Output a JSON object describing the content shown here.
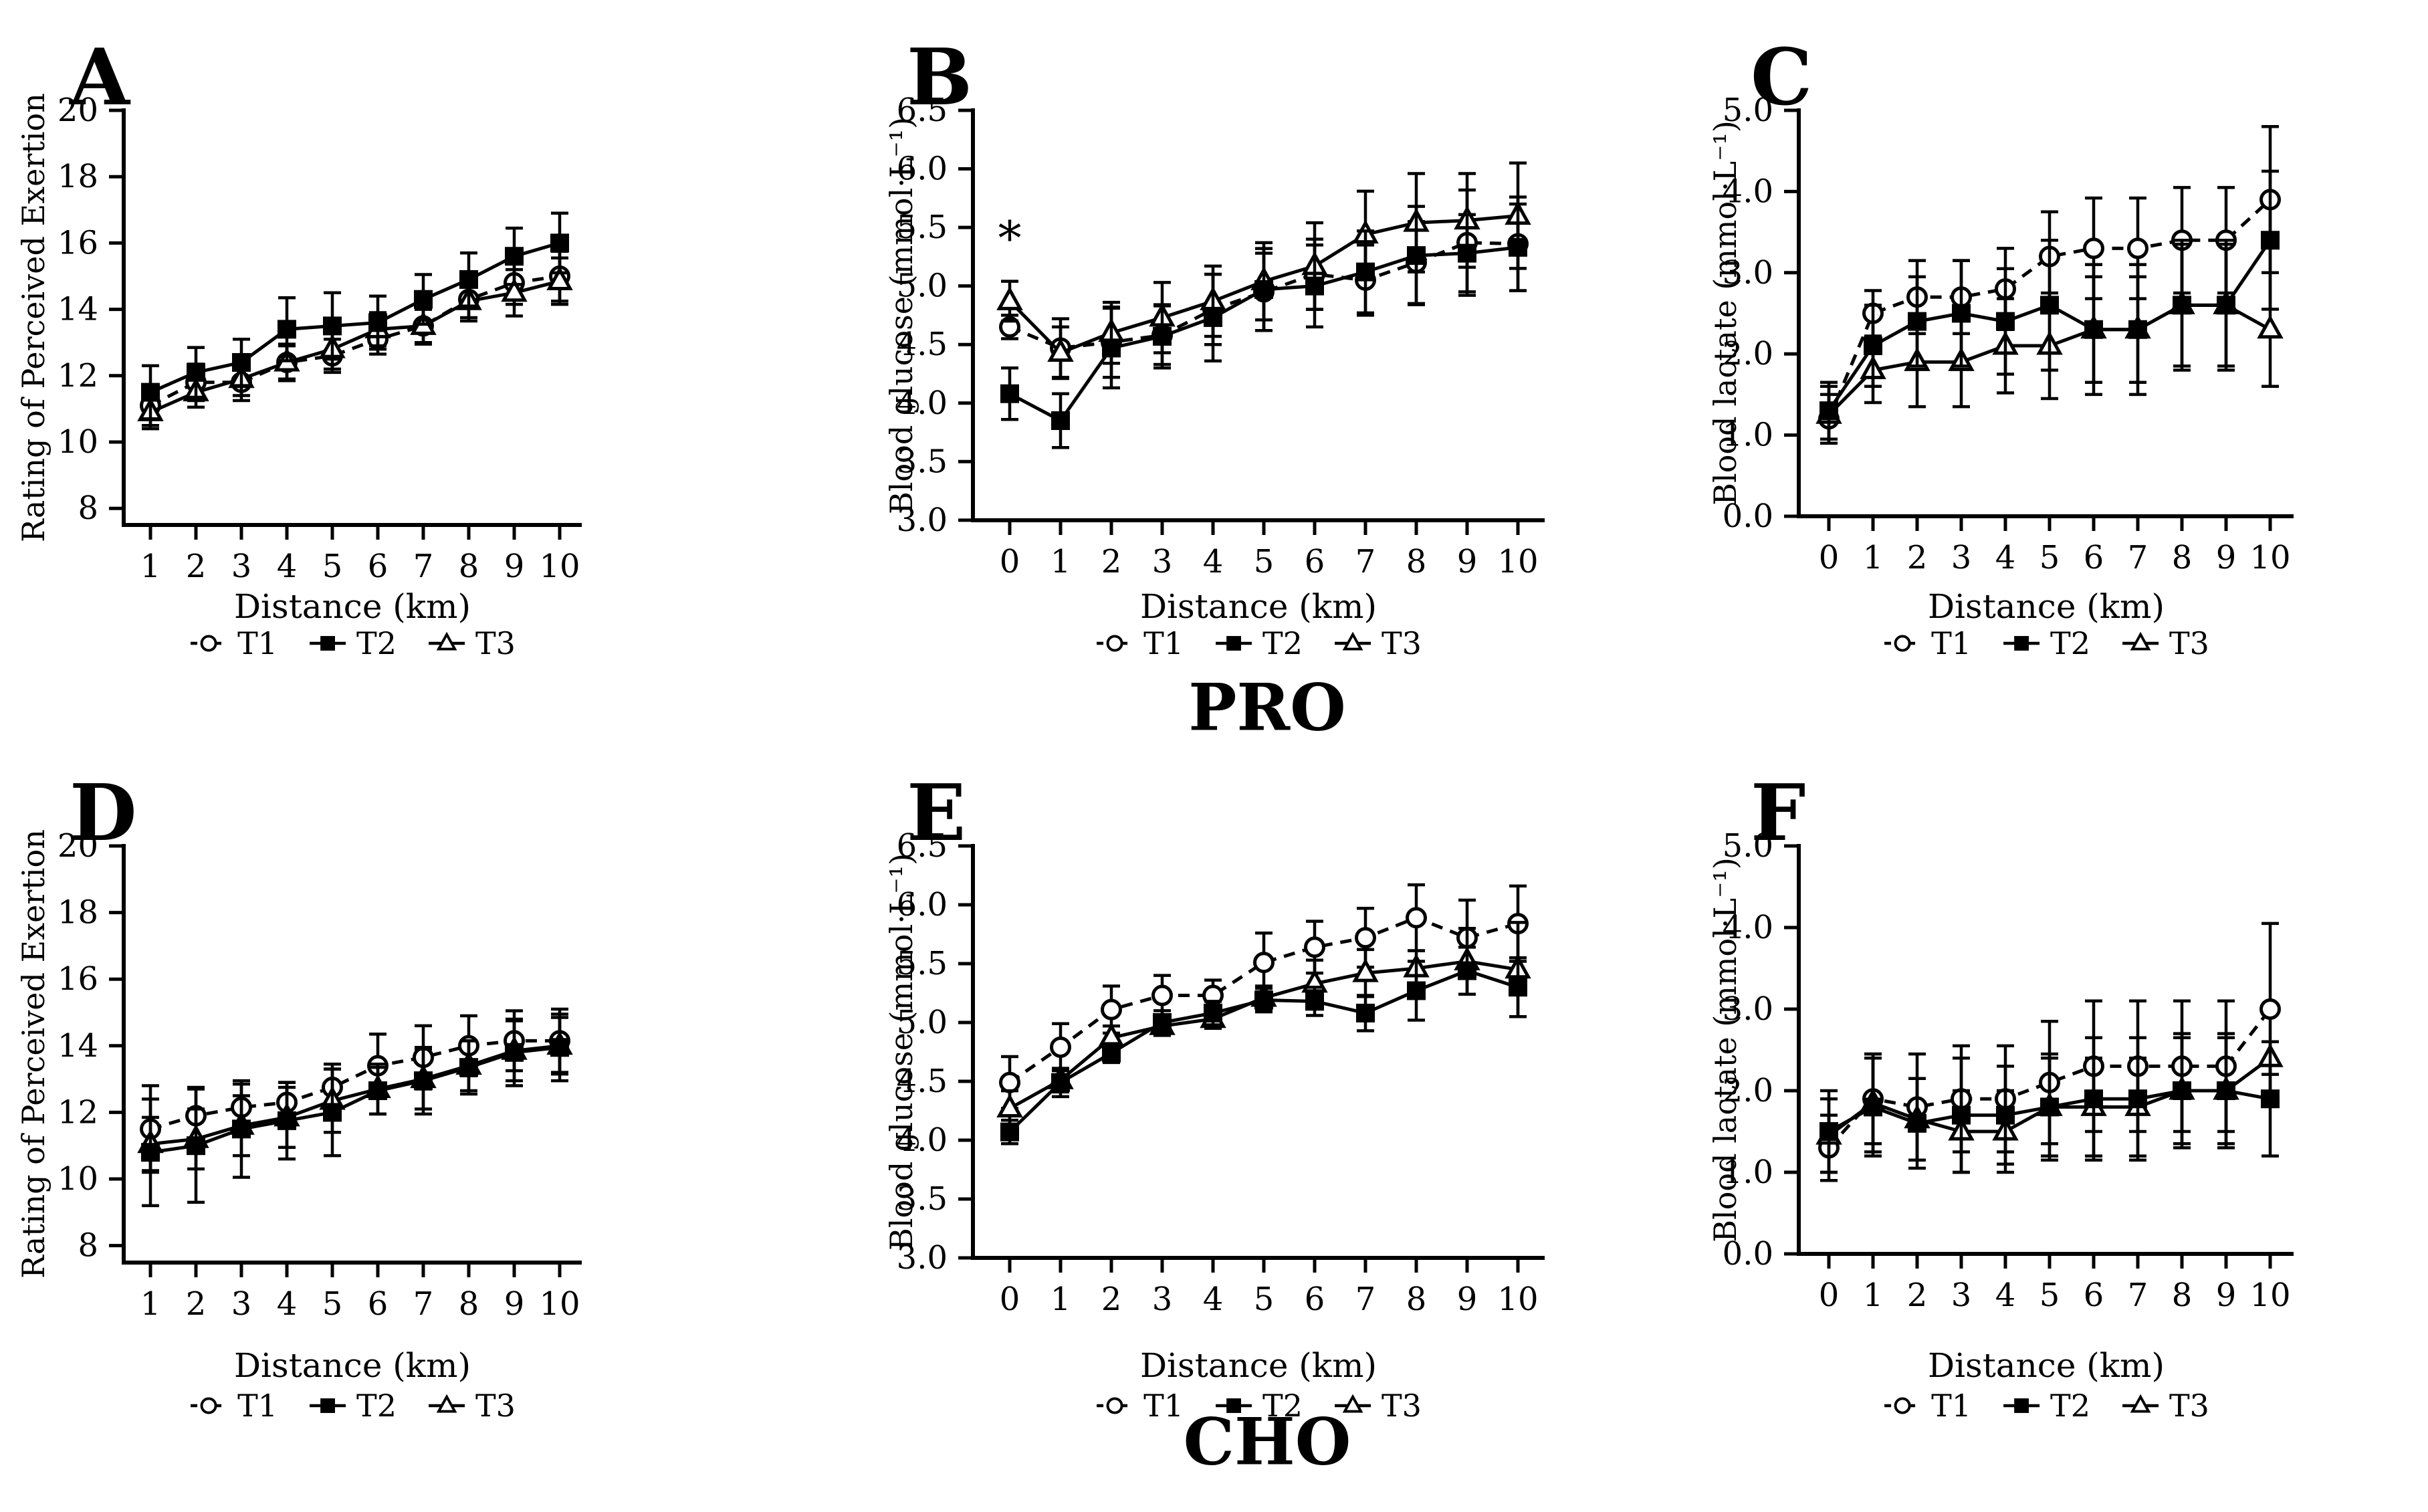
{
  "figure": {
    "background": "#ffffff",
    "ink_color": "#000000",
    "group_titles": {
      "top": "PRO",
      "bottom": "CHO"
    }
  },
  "chart_data": [
    {
      "id": "A",
      "panel_label": "A",
      "type": "line",
      "group": "PRO",
      "xlabel": "Distance (km)",
      "ylabel": "Rating of Perceived Exertion",
      "ylim": [
        7.5,
        20
      ],
      "xlim": [
        0.4,
        10.7
      ],
      "grid": false,
      "legend_position": "bottom",
      "x": [
        1,
        2,
        3,
        4,
        5,
        6,
        7,
        8,
        9,
        10
      ],
      "xticks": {
        "values": [
          1,
          2,
          3,
          4,
          5,
          6,
          7,
          8,
          9,
          10
        ],
        "labels": [
          "1",
          "2",
          "3",
          "4",
          "5",
          "6",
          "7",
          "8",
          "9",
          "10"
        ]
      },
      "yticks": {
        "values": [
          20,
          18,
          16,
          14,
          12,
          10,
          8
        ],
        "labels": [
          "20",
          "18",
          "16",
          "14",
          "12",
          "10",
          "8"
        ]
      },
      "series": [
        {
          "name": "T1",
          "marker": "open-circle",
          "line": "dashed",
          "values": [
            11.1,
            11.8,
            11.8,
            12.4,
            12.6,
            13.1,
            13.5,
            14.3,
            14.8,
            15.0
          ],
          "sd": [
            0.6,
            0.55,
            0.55,
            0.5,
            0.5,
            0.45,
            0.55,
            0.55,
            0.65,
            0.75
          ]
        },
        {
          "name": "T2",
          "marker": "filled-square",
          "line": "solid",
          "values": [
            11.5,
            12.1,
            12.4,
            13.4,
            13.5,
            13.6,
            14.3,
            14.9,
            15.6,
            16.0
          ],
          "sd": [
            0.8,
            0.75,
            0.7,
            0.95,
            1.0,
            0.8,
            0.75,
            0.8,
            0.85,
            0.9
          ]
        },
        {
          "name": "T3",
          "marker": "open-triangle",
          "line": "solid",
          "values": [
            10.9,
            11.5,
            11.9,
            12.4,
            12.8,
            13.4,
            13.5,
            14.25,
            14.5,
            14.85
          ],
          "sd": [
            0.5,
            0.45,
            0.5,
            0.55,
            0.6,
            0.5,
            0.5,
            0.6,
            0.7,
            0.7
          ]
        }
      ]
    },
    {
      "id": "B",
      "panel_label": "B",
      "type": "line",
      "group": "PRO",
      "xlabel": "Distance (km)",
      "ylabel": "Blood glucose (mmol·L⁻¹)",
      "ylim": [
        3.0,
        6.5
      ],
      "xlim": [
        -0.6,
        10.5
      ],
      "grid": false,
      "legend_position": "bottom",
      "x": [
        0,
        1,
        2,
        3,
        4,
        5,
        6,
        7,
        8,
        9,
        10
      ],
      "xticks": {
        "values": [
          0,
          1,
          2,
          3,
          4,
          5,
          6,
          7,
          8,
          9,
          10
        ],
        "labels": [
          "0",
          "1",
          "2",
          "3",
          "4",
          "5",
          "6",
          "7",
          "8",
          "9",
          "10"
        ]
      },
      "yticks": {
        "values": [
          6.5,
          6.0,
          5.5,
          5.0,
          4.5,
          4.0,
          3.5,
          3.0
        ],
        "labels": [
          "6.5",
          "6.0",
          "5.5",
          "5.0",
          "4.5",
          "4.0",
          "3.5",
          "3.0"
        ]
      },
      "series": [
        {
          "name": "T1",
          "marker": "open-circle",
          "line": "dashed",
          "values": [
            4.65,
            4.47,
            4.52,
            4.58,
            4.8,
            4.95,
            5.1,
            5.05,
            5.2,
            5.37,
            5.36
          ],
          "sd": [
            0.1,
            0.25,
            0.3,
            0.25,
            0.3,
            0.33,
            0.3,
            0.3,
            0.35,
            0.45,
            0.4
          ]
        },
        {
          "name": "T2",
          "marker": "filled-square",
          "line": "solid",
          "values": [
            4.08,
            3.85,
            4.47,
            4.57,
            4.73,
            4.97,
            5.0,
            5.12,
            5.26,
            5.28,
            5.33
          ],
          "sd": [
            0.22,
            0.23,
            0.34,
            0.27,
            0.37,
            0.35,
            0.35,
            0.35,
            0.42,
            0.33,
            0.37
          ]
        },
        {
          "name": "T3",
          "marker": "open-triangle",
          "line": "solid",
          "values": [
            4.87,
            4.43,
            4.6,
            4.73,
            4.87,
            5.04,
            5.17,
            5.44,
            5.54,
            5.56,
            5.6
          ],
          "sd": [
            0.17,
            0.22,
            0.26,
            0.3,
            0.3,
            0.33,
            0.37,
            0.37,
            0.42,
            0.4,
            0.45
          ]
        }
      ],
      "annotations": [
        {
          "text": "*",
          "x": 0,
          "y": 5.27
        }
      ]
    },
    {
      "id": "C",
      "panel_label": "C",
      "type": "line",
      "group": "PRO",
      "xlabel": "Distance (km)",
      "ylabel": "Blood lactate (mmol·L⁻¹)",
      "ylim": [
        0.0,
        5.0
      ],
      "xlim": [
        -0.7,
        10.5
      ],
      "grid": false,
      "legend_position": "bottom",
      "x": [
        0,
        1,
        2,
        3,
        4,
        5,
        6,
        7,
        8,
        9,
        10
      ],
      "xticks": {
        "values": [
          0,
          1,
          2,
          3,
          4,
          5,
          6,
          7,
          8,
          9,
          10
        ],
        "labels": [
          "0",
          "1",
          "2",
          "3",
          "4",
          "5",
          "6",
          "7",
          "8",
          "9",
          "10"
        ]
      },
      "yticks": {
        "values": [
          5.0,
          4.0,
          3.0,
          2.0,
          1.0,
          0.0
        ],
        "labels": [
          "5.0",
          "4.0",
          "3.0",
          "2.0",
          "1.0",
          "0.0"
        ]
      },
      "series": [
        {
          "name": "T1",
          "marker": "open-circle",
          "line": "dashed",
          "values": [
            1.2,
            2.5,
            2.7,
            2.7,
            2.8,
            3.2,
            3.3,
            3.3,
            3.4,
            3.4,
            3.9
          ],
          "sd": [
            0.3,
            0.28,
            0.45,
            0.45,
            0.5,
            0.55,
            0.62,
            0.62,
            0.65,
            0.65,
            0.9
          ]
        },
        {
          "name": "T2",
          "marker": "filled-square",
          "line": "solid",
          "values": [
            1.3,
            2.1,
            2.4,
            2.5,
            2.4,
            2.6,
            2.3,
            2.3,
            2.6,
            2.6,
            3.4
          ],
          "sd": [
            0.35,
            0.5,
            0.55,
            0.65,
            0.65,
            0.8,
            0.8,
            0.8,
            0.8,
            0.8,
            0.85
          ]
        },
        {
          "name": "T3",
          "marker": "open-triangle",
          "line": "solid",
          "values": [
            1.25,
            1.8,
            1.9,
            1.9,
            2.1,
            2.1,
            2.3,
            2.3,
            2.6,
            2.6,
            2.3
          ],
          "sd": [
            0.35,
            0.4,
            0.55,
            0.55,
            0.58,
            0.65,
            0.65,
            0.65,
            0.75,
            0.75,
            0.7
          ]
        }
      ]
    },
    {
      "id": "D",
      "panel_label": "D",
      "type": "line",
      "group": "CHO",
      "xlabel": "Distance (km)",
      "ylabel": "Rating of Perceived Exertion",
      "ylim": [
        7.5,
        20
      ],
      "xlim": [
        0.4,
        10.7
      ],
      "grid": false,
      "legend_position": "bottom",
      "x": [
        1,
        2,
        3,
        4,
        5,
        6,
        7,
        8,
        9,
        10
      ],
      "xticks": {
        "values": [
          1,
          2,
          3,
          4,
          5,
          6,
          7,
          8,
          9,
          10
        ],
        "labels": [
          "1",
          "2",
          "3",
          "4",
          "5",
          "6",
          "7",
          "8",
          "9",
          "10"
        ]
      },
      "yticks": {
        "values": [
          20,
          18,
          16,
          14,
          12,
          10,
          8
        ],
        "labels": [
          "20",
          "18",
          "16",
          "14",
          "12",
          "10",
          "8"
        ]
      },
      "series": [
        {
          "name": "T1",
          "marker": "open-circle",
          "line": "dashed",
          "values": [
            11.5,
            11.9,
            12.15,
            12.3,
            12.75,
            13.4,
            13.65,
            14.0,
            14.15,
            14.15
          ],
          "sd": [
            1.3,
            0.85,
            0.7,
            0.6,
            0.7,
            0.95,
            0.95,
            0.9,
            0.9,
            0.95
          ]
        },
        {
          "name": "T2",
          "marker": "filled-square",
          "line": "solid",
          "values": [
            10.8,
            11.0,
            11.5,
            11.75,
            12.0,
            12.65,
            12.95,
            13.35,
            13.8,
            13.95
          ],
          "sd": [
            1.6,
            1.7,
            1.45,
            1.15,
            1.3,
            0.7,
            1.0,
            0.8,
            1.0,
            1.0
          ]
        },
        {
          "name": "T3",
          "marker": "open-triangle",
          "line": "solid",
          "values": [
            11.05,
            11.2,
            11.6,
            11.85,
            12.35,
            12.7,
            13.0,
            13.4,
            13.85,
            14.0
          ],
          "sd": [
            0.8,
            0.9,
            0.9,
            0.9,
            0.95,
            0.75,
            0.9,
            0.75,
            0.9,
            0.85
          ]
        }
      ]
    },
    {
      "id": "E",
      "panel_label": "E",
      "type": "line",
      "group": "CHO",
      "xlabel": "Distance (km)",
      "ylabel": "Blood glucose (mmol·L⁻¹)",
      "ylim": [
        3.0,
        6.5
      ],
      "xlim": [
        -0.6,
        10.5
      ],
      "grid": false,
      "legend_position": "bottom",
      "x": [
        0,
        1,
        2,
        3,
        4,
        5,
        6,
        7,
        8,
        9,
        10
      ],
      "xticks": {
        "values": [
          0,
          1,
          2,
          3,
          4,
          5,
          6,
          7,
          8,
          9,
          10
        ],
        "labels": [
          "0",
          "1",
          "2",
          "3",
          "4",
          "5",
          "6",
          "7",
          "8",
          "9",
          "10"
        ]
      },
      "yticks": {
        "values": [
          6.5,
          6.0,
          5.5,
          5.0,
          4.5,
          4.0,
          3.5,
          3.0
        ],
        "labels": [
          "6.5",
          "6.0",
          "5.5",
          "5.0",
          "4.5",
          "4.0",
          "3.5",
          "3.0"
        ]
      },
      "series": [
        {
          "name": "T1",
          "marker": "open-circle",
          "line": "dashed",
          "values": [
            4.49,
            4.79,
            5.11,
            5.23,
            5.23,
            5.51,
            5.64,
            5.72,
            5.89,
            5.72,
            5.84
          ],
          "sd": [
            0.22,
            0.2,
            0.2,
            0.17,
            0.13,
            0.25,
            0.22,
            0.25,
            0.28,
            0.32,
            0.32
          ]
        },
        {
          "name": "T2",
          "marker": "filled-square",
          "line": "solid",
          "values": [
            4.07,
            4.49,
            4.74,
            5.0,
            5.08,
            5.19,
            5.18,
            5.08,
            5.27,
            5.44,
            5.3
          ],
          "sd": [
            0.1,
            0.12,
            0.08,
            0.1,
            0.1,
            0.1,
            0.12,
            0.15,
            0.25,
            0.2,
            0.25
          ]
        },
        {
          "name": "T3",
          "marker": "open-triangle",
          "line": "solid",
          "values": [
            4.27,
            4.51,
            4.87,
            4.97,
            5.03,
            5.21,
            5.33,
            5.42,
            5.46,
            5.52,
            5.45
          ],
          "sd": [
            0.15,
            0.1,
            0.1,
            0.08,
            0.08,
            0.1,
            0.2,
            0.2,
            0.15,
            0.28,
            0.4
          ]
        }
      ]
    },
    {
      "id": "F",
      "panel_label": "F",
      "type": "line",
      "group": "CHO",
      "xlabel": "Distance (km)",
      "ylabel": "Blood lactate (mmol·L⁻¹)",
      "ylim": [
        0.0,
        5.0
      ],
      "xlim": [
        -0.7,
        10.5
      ],
      "grid": false,
      "legend_position": "bottom",
      "x": [
        0,
        1,
        2,
        3,
        4,
        5,
        6,
        7,
        8,
        9,
        10
      ],
      "xticks": {
        "values": [
          0,
          1,
          2,
          3,
          4,
          5,
          6,
          7,
          8,
          9,
          10
        ],
        "labels": [
          "0",
          "1",
          "2",
          "3",
          "4",
          "5",
          "6",
          "7",
          "8",
          "9",
          "10"
        ]
      },
      "yticks": {
        "values": [
          5.0,
          4.0,
          3.0,
          2.0,
          1.0,
          0.0
        ],
        "labels": [
          "5.0",
          "4.0",
          "3.0",
          "2.0",
          "1.0",
          "0.0"
        ]
      },
      "series": [
        {
          "name": "T1",
          "marker": "open-circle",
          "line": "dashed",
          "values": [
            1.3,
            1.9,
            1.8,
            1.9,
            1.9,
            2.1,
            2.3,
            2.3,
            2.3,
            2.3,
            3.0
          ],
          "sd": [
            0.4,
            0.55,
            0.65,
            0.65,
            0.65,
            0.75,
            0.8,
            0.8,
            0.8,
            0.8,
            1.05
          ]
        },
        {
          "name": "T2",
          "marker": "filled-square",
          "line": "solid",
          "values": [
            1.5,
            1.8,
            1.6,
            1.7,
            1.7,
            1.8,
            1.9,
            1.9,
            2.0,
            2.0,
            1.9
          ],
          "sd": [
            0.5,
            0.6,
            0.55,
            0.7,
            0.6,
            0.65,
            0.75,
            0.75,
            0.7,
            0.7,
            0.7
          ]
        },
        {
          "name": "T3",
          "marker": "open-triangle",
          "line": "solid",
          "values": [
            1.45,
            1.85,
            1.65,
            1.5,
            1.5,
            1.8,
            1.8,
            1.8,
            2.0,
            2.0,
            2.4
          ],
          "sd": [
            0.45,
            0.6,
            0.5,
            0.5,
            0.5,
            0.6,
            0.6,
            0.6,
            0.65,
            0.65,
            0.2
          ]
        }
      ]
    }
  ]
}
